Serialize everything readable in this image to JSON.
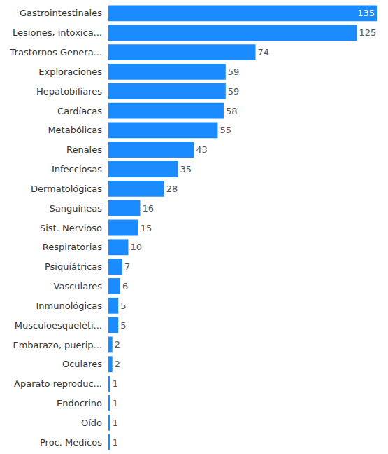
{
  "chart_data": {
    "type": "bar",
    "orientation": "horizontal",
    "categories": [
      "Gastrointestinales",
      "Lesiones, intoxica...",
      "Trastornos Genera...",
      "Exploraciones",
      "Hepatobiliares",
      "Cardíacas",
      "Metabólicas",
      "Renales",
      "Infecciosas",
      "Dermatológicas",
      "Sanguíneas",
      "Sist. Nervioso",
      "Respiratorias",
      "Psiquiátricas",
      "Vasculares",
      "Inmunológicas",
      "Musculoesqueléti...",
      "Embarazo, puerip...",
      "Oculares",
      "Aparato reproduc...",
      "Endocrino",
      "Oído",
      "Proc. Médicos"
    ],
    "values": [
      135,
      125,
      74,
      59,
      59,
      58,
      55,
      43,
      35,
      28,
      16,
      15,
      10,
      7,
      6,
      5,
      5,
      2,
      2,
      1,
      1,
      1,
      1
    ],
    "color": "#1a8cff",
    "xlim": [
      0,
      135
    ],
    "data_labels": true,
    "tick_labels": "y",
    "grid": false
  }
}
